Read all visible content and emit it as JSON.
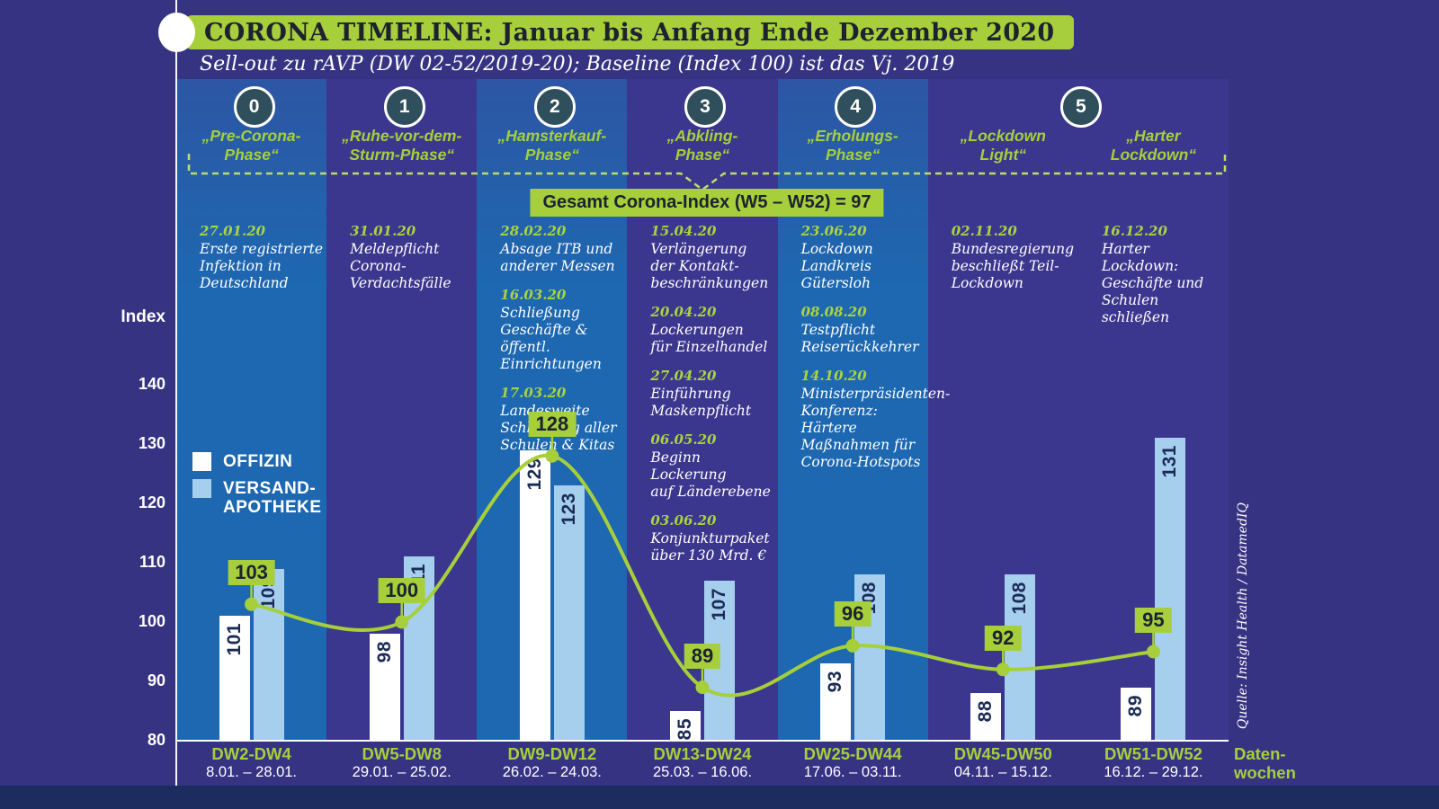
{
  "title": "CORONA TIMELINE: Januar bis Anfang Ende Dezember 2020",
  "subtitle": "Sell-out zu rAVP (DW 02-52/2019-20); Baseline (Index 100) ist das Vj. 2019",
  "gesamt_label": "Gesamt Corona-Index (W5 – W52) = 97",
  "source": "Quelle: Insight Health / DatamedIQ",
  "colors": {
    "background": "#363383",
    "column_light": "#1d68b1",
    "column_dark": "#3b378e",
    "accent_green": "#a6cf3b",
    "dash_green": "#bedc66",
    "bar_white": "#ffffff",
    "bar_blue": "#a6cfee",
    "bar_label_navy": "#1b2a55",
    "badge_circle": "#2f4f5c",
    "bottom_strip": "#1d2c5f"
  },
  "legend": [
    {
      "name": "OFFIZIN",
      "color": "#ffffff"
    },
    {
      "name": "VERSAND-APOTHEKE",
      "lines": [
        "VERSAND-",
        "APOTHEKE"
      ],
      "color": "#a6cfee"
    }
  ],
  "floating_badge": {
    "number": "5"
  },
  "axis_x_title_lines": [
    "Daten-",
    "wochen"
  ],
  "columns": [
    {
      "shade": "light",
      "badge": "0",
      "phase_lines": [
        "„Pre-Corona-",
        "Phase“"
      ],
      "events": [
        {
          "date": "27.01.20",
          "lines": [
            "Erste registrierte",
            "Infektion in",
            "Deutschland"
          ]
        }
      ]
    },
    {
      "shade": "dark",
      "badge": "1",
      "phase_lines": [
        "„Ruhe-vor-dem-",
        "Sturm-Phase“"
      ],
      "events": [
        {
          "date": "31.01.20",
          "lines": [
            "Meldepflicht",
            "Corona-Verdachtsfälle"
          ]
        }
      ]
    },
    {
      "shade": "light",
      "badge": "2",
      "phase_lines": [
        "„Hamsterkauf-",
        "Phase“"
      ],
      "events": [
        {
          "date": "28.02.20",
          "lines": [
            "Absage ITB und",
            "anderer Messen"
          ]
        },
        {
          "date": "16.03.20",
          "lines": [
            "Schließung",
            "Geschäfte & öffentl.",
            "Einrichtungen"
          ]
        },
        {
          "date": "17.03.20",
          "lines": [
            "Landesweite",
            "Schließung aller",
            "Schulen & Kitas"
          ]
        }
      ]
    },
    {
      "shade": "dark",
      "badge": "3",
      "phase_lines": [
        "„Abkling-",
        "Phase“"
      ],
      "events": [
        {
          "date": "15.04.20",
          "lines": [
            "Verlängerung",
            "der Kontakt-",
            "beschränkungen"
          ]
        },
        {
          "date": "20.04.20",
          "lines": [
            "Lockerungen",
            "für Einzelhandel"
          ]
        },
        {
          "date": "27.04.20",
          "lines": [
            "Einführung",
            "Maskenpflicht"
          ]
        },
        {
          "date": "06.05.20",
          "lines": [
            "Beginn Lockerung",
            "auf Länderebene"
          ]
        },
        {
          "date": "03.06.20",
          "lines": [
            "Konjunkturpaket",
            "über 130 Mrd. €"
          ]
        }
      ]
    },
    {
      "shade": "light",
      "badge": "4",
      "phase_lines": [
        "„Erholungs-",
        "Phase“"
      ],
      "events": [
        {
          "date": "23.06.20",
          "lines": [
            "Lockdown Landkreis",
            "Gütersloh"
          ]
        },
        {
          "date": "08.08.20",
          "lines": [
            "Testpflicht",
            "Reiserückkehrer"
          ]
        },
        {
          "date": "14.10.20",
          "lines": [
            "Ministerpräsidenten-",
            "Konferenz: Härtere",
            "Maßnahmen für",
            "Corona-Hotspots"
          ]
        }
      ]
    },
    {
      "shade": "dark",
      "badge": null,
      "phase_lines": [
        "„Lockdown",
        "Light“"
      ],
      "events": [
        {
          "date": "02.11.20",
          "lines": [
            "Bundesregierung",
            "beschließt Teil-",
            "Lockdown"
          ]
        }
      ]
    },
    {
      "shade": "dark",
      "badge": null,
      "phase_lines": [
        "„Harter",
        "Lockdown“"
      ],
      "events": [
        {
          "date": "16.12.20",
          "lines": [
            "Harter Lockdown:",
            "Geschäfte und",
            "Schulen schließen"
          ]
        }
      ]
    }
  ],
  "chart_data": {
    "type": "bar",
    "categories": [
      "DW2-DW4",
      "DW5-DW8",
      "DW9-DW12",
      "DW13-DW24",
      "DW25-DW44",
      "DW45-DW50",
      "DW51-DW52"
    ],
    "date_ranges": [
      "8.01. – 28.01.",
      "29.01. – 25.02.",
      "26.02. – 24.03.",
      "25.03. – 16.06.",
      "17.06. – 03.11.",
      "04.11. – 15.12.",
      "16.12. – 29.12."
    ],
    "series": [
      {
        "name": "OFFIZIN",
        "type": "bar",
        "color": "#ffffff",
        "values": [
          101,
          98,
          129,
          85,
          93,
          88,
          89
        ]
      },
      {
        "name": "VERSAND-APOTHEKE",
        "type": "bar",
        "color": "#a6cfee",
        "values": [
          109,
          111,
          123,
          107,
          108,
          108,
          131
        ]
      },
      {
        "name": "Gesamt Corona-Index",
        "type": "line",
        "color": "#a6cf3b",
        "values": [
          103,
          100,
          128,
          89,
          96,
          92,
          95
        ]
      }
    ],
    "title": "CORONA TIMELINE: Januar bis Anfang Ende Dezember 2020",
    "xlabel": "Daten-wochen",
    "ylabel": "Index",
    "ylim": [
      80,
      140
    ],
    "yticks": [
      140,
      130,
      120,
      110,
      100,
      90,
      80
    ],
    "grid": false,
    "legend_position": "left-middle"
  }
}
